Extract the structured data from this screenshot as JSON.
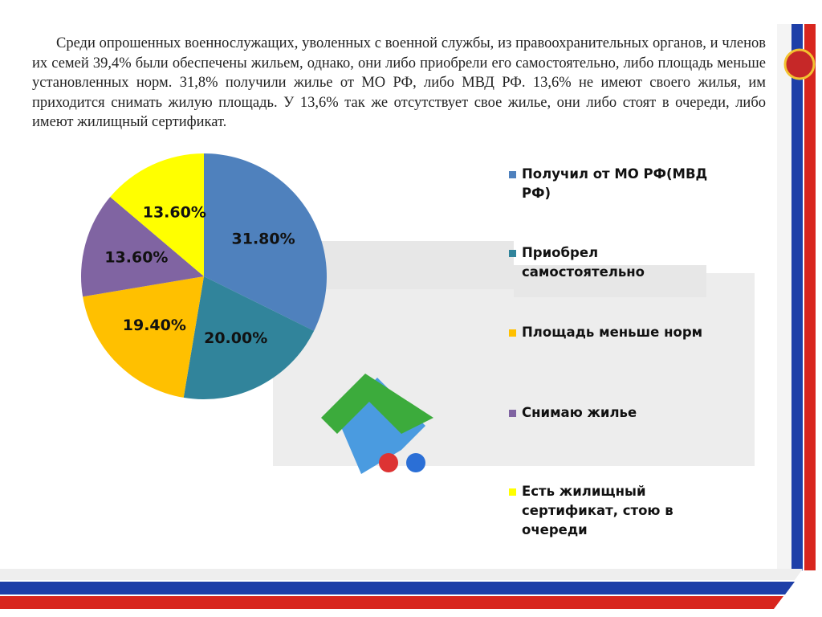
{
  "paragraph": "Среди опрошенных военнослужащих, уволенных с военной службы, из правоохранительных органов, и членов их семей 39,4% были обеспечены жильем, однако, они либо приобрели его самостоятельно, либо площадь меньше установленных норм. 31,8% получили жилье от  МО РФ, либо МВД РФ. 13,6% не имеют своего жилья, им приходится снимать жилую площадь. У 13,6% так же отсутствует свое жилье, они либо стоят в очереди, либо имеют жилищный сертификат.",
  "chart_data": {
    "type": "pie",
    "categories": [
      "Получил от МО РФ(МВД РФ)",
      "Приобрел самостоятельно",
      "Площадь меньше норм",
      "Снимаю жилье",
      "Есть жилищный сертификат, стою в очереди"
    ],
    "values": [
      31.8,
      20.0,
      19.4,
      13.6,
      13.6
    ],
    "value_labels": [
      "31.80%",
      "20.00%",
      "19.40%",
      "13.60%",
      "13.60%"
    ],
    "colors": [
      "#4f81bd",
      "#31849b",
      "#ffc000",
      "#8064a2",
      "#ffff00"
    ],
    "legend": "right"
  }
}
